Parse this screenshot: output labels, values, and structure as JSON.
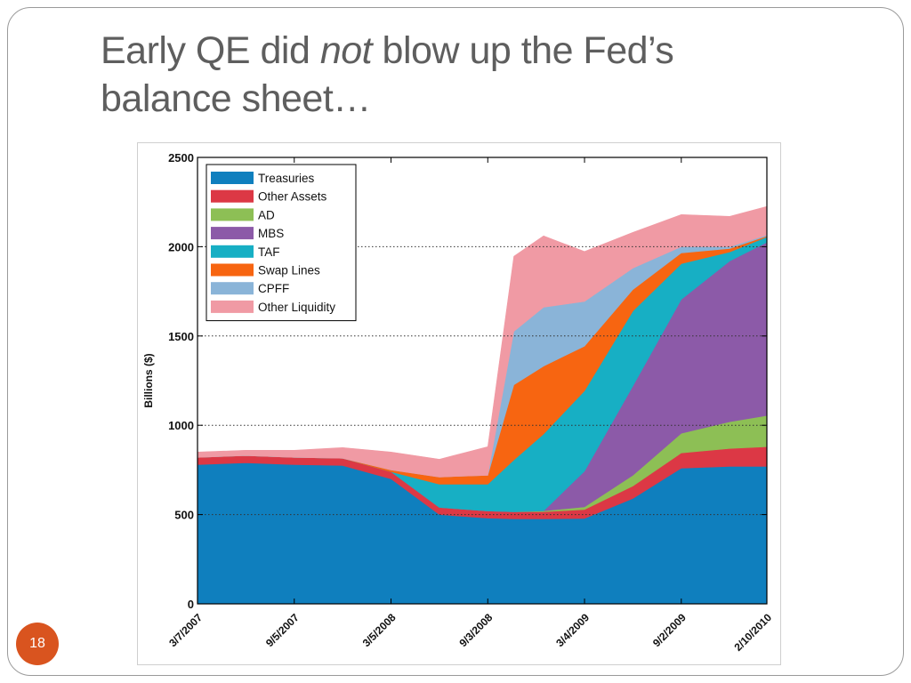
{
  "slide": {
    "title_part1": "Early QE did ",
    "title_emph": "not",
    "title_part2": " blow up the Fed’s balance sheet…",
    "page_number": "18",
    "badge_color": "#d9541f"
  },
  "chart_data": {
    "type": "area",
    "stacked": true,
    "ylabel": "Billions ($)",
    "ylim": [
      0,
      2500
    ],
    "yticks": [
      0,
      500,
      1000,
      1500,
      2000,
      2500
    ],
    "grid": "dotted horizontal lines",
    "legend_position": "top-left",
    "xticklabels": [
      "3/7/2007",
      "9/5/2007",
      "3/5/2008",
      "9/3/2008",
      "3/4/2009",
      "9/2/2009",
      "2/10/2010"
    ],
    "x": [
      "3/7/2007",
      "6/6/2007",
      "9/5/2007",
      "12/5/2007",
      "3/5/2008",
      "6/4/2008",
      "9/3/2008",
      "10/22/2008",
      "12/17/2008",
      "3/4/2009",
      "6/3/2009",
      "9/2/2009",
      "12/2/2009",
      "2/10/2010"
    ],
    "series": [
      {
        "name": "Treasuries",
        "color": "#0f7fbe",
        "values": [
          780,
          790,
          780,
          775,
          700,
          500,
          480,
          476,
          476,
          478,
          590,
          760,
          770,
          770
        ]
      },
      {
        "name": "Other Assets",
        "color": "#dc3845",
        "values": [
          40,
          40,
          40,
          40,
          40,
          40,
          40,
          40,
          40,
          50,
          70,
          85,
          100,
          110
        ]
      },
      {
        "name": "AD",
        "color": "#8dbf55",
        "values": [
          0,
          0,
          0,
          0,
          0,
          0,
          0,
          0,
          5,
          15,
          60,
          110,
          150,
          175
        ]
      },
      {
        "name": "MBS",
        "color": "#8c5aa8",
        "values": [
          0,
          0,
          0,
          0,
          0,
          0,
          0,
          0,
          0,
          200,
          500,
          750,
          900,
          970
        ]
      },
      {
        "name": "TAF",
        "color": "#17afc4",
        "values": [
          0,
          0,
          0,
          0,
          0,
          130,
          150,
          290,
          430,
          450,
          420,
          200,
          50,
          30
        ]
      },
      {
        "name": "Swap Lines",
        "color": "#f76511",
        "values": [
          0,
          0,
          0,
          0,
          10,
          40,
          50,
          420,
          380,
          250,
          120,
          60,
          20,
          5
        ]
      },
      {
        "name": "CPFF",
        "color": "#8ab4d8",
        "values": [
          0,
          0,
          0,
          0,
          0,
          0,
          0,
          300,
          330,
          250,
          120,
          35,
          10,
          5
        ]
      },
      {
        "name": "Other Liquidity",
        "color": "#f09aa4",
        "values": [
          30,
          30,
          40,
          60,
          100,
          100,
          160,
          420,
          400,
          280,
          200,
          180,
          170,
          160
        ]
      }
    ]
  }
}
